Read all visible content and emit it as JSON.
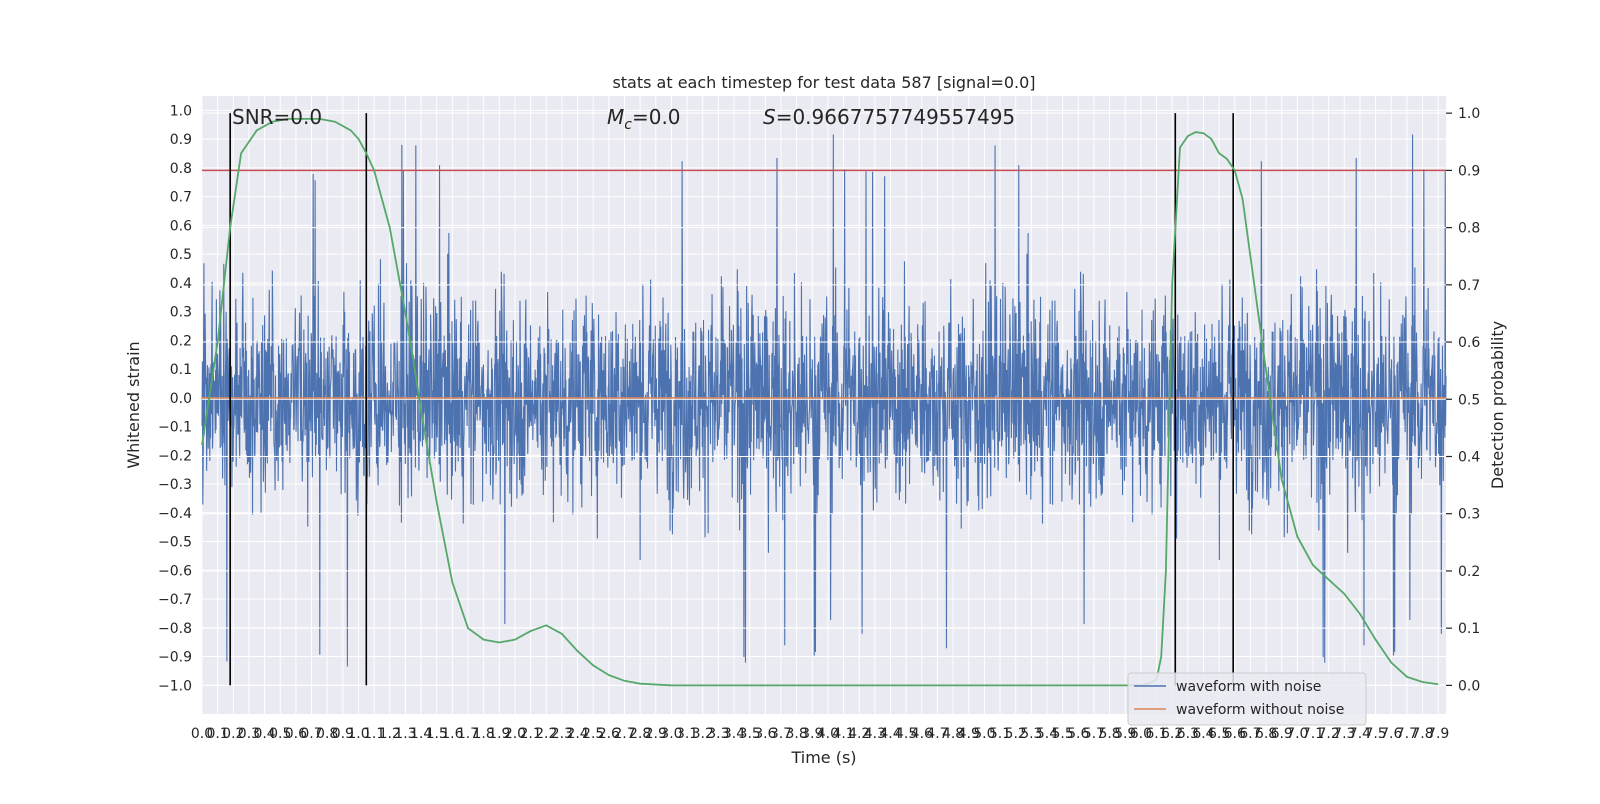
{
  "chart_data": {
    "type": "line",
    "title": "stats at each timestep for test data 587 [signal=0.0]",
    "xlabel": "Time (s)",
    "ylabel": "Whitened strain",
    "y2label": "Detection probability",
    "xlim": [
      0,
      7.95
    ],
    "ylim": [
      -1.1,
      1.05
    ],
    "y2lim": [
      -0.05,
      1.03
    ],
    "x_ticks": [
      "0.0",
      "0.1",
      "0.2",
      "0.3",
      "0.4",
      "0.5",
      "0.6",
      "0.7",
      "0.8",
      "0.9",
      "1.0",
      "1.1",
      "1.2",
      "1.3",
      "1.4",
      "1.5",
      "1.6",
      "1.7",
      "1.8",
      "1.9",
      "2.0",
      "2.1",
      "2.2",
      "2.3",
      "2.4",
      "2.5",
      "2.6",
      "2.7",
      "2.8",
      "2.9",
      "3.0",
      "3.1",
      "3.2",
      "3.3",
      "3.4",
      "3.5",
      "3.6",
      "3.7",
      "3.8",
      "3.9",
      "4.0",
      "4.1",
      "4.2",
      "4.3",
      "4.4",
      "4.5",
      "4.6",
      "4.7",
      "4.8",
      "4.9",
      "5.0",
      "5.1",
      "5.2",
      "5.3",
      "5.4",
      "5.5",
      "5.6",
      "5.7",
      "5.8",
      "5.9",
      "6.0",
      "6.1",
      "6.2",
      "6.3",
      "6.4",
      "6.5",
      "6.6",
      "6.7",
      "6.8",
      "6.9",
      "7.0",
      "7.1",
      "7.2",
      "7.3",
      "7.4",
      "7.5",
      "7.6",
      "7.7",
      "7.8",
      "7.9"
    ],
    "y_ticks": [
      "1.0",
      "0.9",
      "0.8",
      "0.7",
      "0.6",
      "0.5",
      "0.4",
      "0.3",
      "0.2",
      "0.1",
      "0.0",
      "−0.1",
      "−0.2",
      "−0.3",
      "−0.4",
      "−0.5",
      "−0.6",
      "−0.7",
      "−0.8",
      "−0.9",
      "−1.0"
    ],
    "y2_ticks": [
      "1.0",
      "0.9",
      "0.8",
      "0.7",
      "0.6",
      "0.5",
      "0.4",
      "0.3",
      "0.2",
      "0.1",
      "0.0"
    ],
    "annotations": {
      "snr_label": "SNR=0.0",
      "mc_symbol": "M",
      "mc_subscript": "c",
      "mc_value": "=0.0",
      "s_symbol": "S",
      "s_value": "=0.9667757749557495"
    },
    "legend": {
      "placement": "lower-right",
      "entries": [
        "waveform with noise",
        "waveform without noise"
      ]
    },
    "colors": {
      "noise": "#4c72b0",
      "clean": "#dd8452",
      "probability": "#55a868",
      "threshold": "#c44e52",
      "markers": "#000000",
      "background": "#eaeaf2",
      "grid": "#ffffff"
    },
    "threshold": 0.9,
    "vertical_markers": [
      0.18,
      1.05,
      6.22,
      6.59
    ],
    "noise_amplitude": 0.55,
    "probability": {
      "x": [
        0.0,
        0.1,
        0.18,
        0.25,
        0.35,
        0.45,
        0.55,
        0.65,
        0.75,
        0.85,
        0.95,
        1.0,
        1.05,
        1.1,
        1.2,
        1.3,
        1.35,
        1.4,
        1.45,
        1.5,
        1.55,
        1.6,
        1.7,
        1.8,
        1.9,
        2.0,
        2.1,
        2.2,
        2.3,
        2.4,
        2.5,
        2.6,
        2.7,
        2.8,
        3.0,
        3.5,
        4.0,
        4.5,
        5.0,
        5.5,
        6.0,
        6.05,
        6.1,
        6.13,
        6.16,
        6.2,
        6.25,
        6.3,
        6.35,
        6.4,
        6.45,
        6.5,
        6.55,
        6.6,
        6.65,
        6.7,
        6.8,
        6.9,
        7.0,
        7.1,
        7.2,
        7.3,
        7.4,
        7.5,
        7.6,
        7.7,
        7.8,
        7.9
      ],
      "y": [
        0.42,
        0.6,
        0.8,
        0.93,
        0.97,
        0.985,
        0.99,
        0.99,
        0.99,
        0.985,
        0.97,
        0.955,
        0.93,
        0.9,
        0.8,
        0.65,
        0.57,
        0.48,
        0.4,
        0.32,
        0.25,
        0.18,
        0.1,
        0.08,
        0.075,
        0.08,
        0.095,
        0.105,
        0.09,
        0.06,
        0.035,
        0.018,
        0.008,
        0.003,
        0.0,
        0.0,
        0.0,
        0.0,
        0.0,
        0.0,
        0.0,
        0.003,
        0.01,
        0.05,
        0.2,
        0.7,
        0.94,
        0.96,
        0.967,
        0.965,
        0.955,
        0.93,
        0.92,
        0.9,
        0.85,
        0.75,
        0.55,
        0.36,
        0.26,
        0.21,
        0.185,
        0.16,
        0.125,
        0.08,
        0.04,
        0.015,
        0.006,
        0.002
      ]
    }
  }
}
